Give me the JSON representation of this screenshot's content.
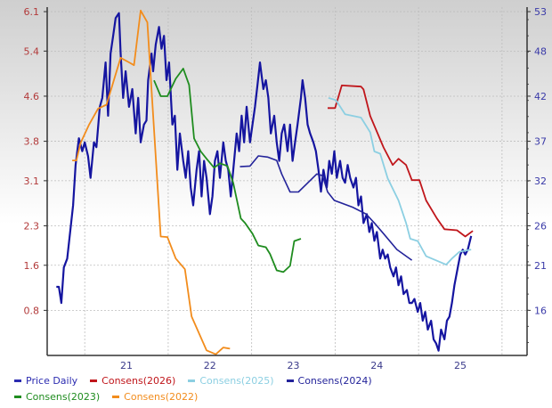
{
  "chart_data": {
    "type": "line",
    "x_range": [
      2020.55,
      2026.3
    ],
    "x_ticks": [
      {
        "label": "21",
        "value": 2021.5
      },
      {
        "label": "22",
        "value": 2022.5
      },
      {
        "label": "23",
        "value": 2023.5
      },
      {
        "label": "24",
        "value": 2024.5
      },
      {
        "label": "25",
        "value": 2025.5
      }
    ],
    "x_gridlines": [
      2021,
      2022,
      2023,
      2024,
      2025,
      2026
    ],
    "left_axis": {
      "range": [
        0,
        6.18
      ],
      "ticks": [
        "6.1",
        "5.4",
        "4.6",
        "3.8",
        "3.1",
        "2.3",
        "1.6",
        "0.8"
      ],
      "color": "#b23a3a"
    },
    "right_axis": {
      "range": [
        10.4,
        53.55
      ],
      "ticks": [
        "53",
        "48",
        "42",
        "37",
        "32",
        "26",
        "21",
        "16"
      ],
      "color": "#3a3aa8"
    },
    "grid": true,
    "background": "gradient grey to white",
    "legend_position": "bottom",
    "series": [
      {
        "name": "Price Daily",
        "axis": "right",
        "color": "#1515a0",
        "width": 2.2,
        "x": [
          2020.66,
          2020.69,
          2020.72,
          2020.75,
          2020.79,
          2020.82,
          2020.86,
          2020.89,
          2020.93,
          2020.97,
          2021.0,
          2021.04,
          2021.07,
          2021.11,
          2021.14,
          2021.18,
          2021.21,
          2021.25,
          2021.28,
          2021.31,
          2021.34,
          2021.37,
          2021.41,
          2021.43,
          2021.46,
          2021.49,
          2021.53,
          2021.57,
          2021.61,
          2021.64,
          2021.67,
          2021.71,
          2021.74,
          2021.76,
          2021.8,
          2021.82,
          2021.85,
          2021.89,
          2021.92,
          2021.95,
          2021.98,
          2022.01,
          2022.05,
          2022.08,
          2022.11,
          2022.14,
          2022.18,
          2022.21,
          2022.24,
          2022.27,
          2022.3,
          2022.34,
          2022.37,
          2022.4,
          2022.43,
          2022.46,
          2022.5,
          2022.53,
          2022.56,
          2022.59,
          2022.62,
          2022.66,
          2022.69,
          2022.72,
          2022.75,
          2022.78,
          2022.82,
          2022.85,
          2022.88,
          2022.91,
          2022.94,
          2022.98,
          2023.01,
          2023.04,
          2023.07,
          2023.1,
          2023.14,
          2023.17,
          2023.2,
          2023.23,
          2023.27,
          2023.3,
          2023.33,
          2023.36,
          2023.39,
          2023.43,
          2023.46,
          2023.49,
          2023.52,
          2023.55,
          2023.59,
          2023.61,
          2023.64,
          2023.67,
          2023.7,
          2023.74,
          2023.77,
          2023.8,
          2023.83,
          2023.86,
          2023.9,
          2023.93,
          2023.96,
          2023.99,
          2024.02,
          2024.06,
          2024.09,
          2024.12,
          2024.15,
          2024.18,
          2024.22,
          2024.25,
          2024.28,
          2024.31,
          2024.34,
          2024.38,
          2024.41,
          2024.44,
          2024.47,
          2024.5,
          2024.54,
          2024.57,
          2024.6,
          2024.63,
          2024.66,
          2024.7,
          2024.73,
          2024.76,
          2024.79,
          2024.82,
          2024.86,
          2024.89,
          2024.92,
          2024.95,
          2024.99,
          2025.02,
          2025.05,
          2025.08,
          2025.11,
          2025.15,
          2025.18,
          2025.21,
          2025.24,
          2025.27,
          2025.31,
          2025.34,
          2025.37,
          2025.4,
          2025.43,
          2025.47,
          2025.5,
          2025.53,
          2025.56,
          2025.59,
          2025.63
        ],
        "y": [
          18.9,
          18.9,
          16.9,
          21.3,
          22.4,
          25.2,
          29.0,
          34.0,
          37.3,
          35.7,
          36.8,
          35.1,
          32.4,
          36.8,
          36.2,
          41.2,
          42.3,
          46.7,
          40.1,
          47.8,
          50.0,
          52.2,
          52.8,
          47.8,
          42.3,
          45.6,
          41.2,
          43.4,
          37.9,
          42.3,
          36.8,
          39.0,
          39.5,
          44.5,
          47.8,
          45.6,
          48.9,
          51.1,
          48.4,
          50.0,
          44.5,
          46.7,
          39.0,
          40.1,
          33.4,
          37.9,
          34.5,
          32.4,
          35.7,
          31.2,
          29.0,
          33.4,
          35.7,
          30.1,
          34.5,
          32.4,
          27.9,
          30.1,
          34.5,
          35.7,
          32.4,
          36.8,
          34.5,
          33.4,
          30.1,
          33.4,
          37.9,
          35.7,
          40.1,
          36.8,
          41.2,
          36.8,
          39.0,
          41.2,
          43.9,
          46.7,
          43.4,
          44.5,
          42.3,
          37.9,
          40.1,
          36.8,
          34.5,
          37.9,
          39.0,
          35.7,
          39.0,
          34.5,
          36.8,
          39.0,
          42.3,
          44.5,
          42.3,
          39.0,
          37.9,
          36.8,
          35.7,
          33.4,
          30.7,
          33.4,
          31.2,
          34.5,
          32.9,
          35.7,
          32.4,
          34.5,
          32.4,
          31.8,
          34.0,
          32.4,
          31.2,
          32.4,
          29.0,
          30.1,
          26.8,
          27.9,
          25.7,
          26.8,
          24.6,
          25.7,
          22.4,
          23.5,
          22.4,
          22.9,
          21.3,
          20.2,
          21.3,
          19.1,
          20.2,
          18.0,
          18.5,
          16.9,
          16.9,
          17.4,
          15.8,
          16.9,
          14.7,
          15.8,
          13.6,
          14.7,
          12.4,
          11.9,
          11.0,
          13.6,
          12.4,
          14.7,
          15.2,
          16.9,
          19.1,
          21.3,
          22.9,
          23.5,
          22.9,
          23.5,
          25.2
        ]
      },
      {
        "name": "Consens(2026)",
        "axis": "left",
        "color": "#c0161b",
        "width": 1.8,
        "x": [
          2023.91,
          2024.0,
          2024.08,
          2024.31,
          2024.34,
          2024.42,
          2024.58,
          2024.69,
          2024.76,
          2024.85,
          2024.92,
          2025.01,
          2025.09,
          2025.22,
          2025.31,
          2025.46,
          2025.56,
          2025.65
        ],
        "y": [
          4.39,
          4.39,
          4.79,
          4.77,
          4.72,
          4.25,
          3.69,
          3.38,
          3.49,
          3.38,
          3.11,
          3.11,
          2.75,
          2.43,
          2.24,
          2.22,
          2.11,
          2.21
        ]
      },
      {
        "name": "Consens(2025)",
        "axis": "left",
        "color": "#8ccfe2",
        "width": 1.8,
        "x": [
          2023.92,
          2024.01,
          2024.12,
          2024.31,
          2024.42,
          2024.47,
          2024.54,
          2024.63,
          2024.76,
          2024.85,
          2024.9,
          2024.99,
          2025.09,
          2025.33,
          2025.4,
          2025.49,
          2025.63
        ],
        "y": [
          4.57,
          4.53,
          4.28,
          4.22,
          3.96,
          3.62,
          3.58,
          3.14,
          2.75,
          2.35,
          2.07,
          2.03,
          1.76,
          1.61,
          1.72,
          1.84,
          1.88
        ]
      },
      {
        "name": "Consens(2024)",
        "axis": "left",
        "color": "#23239a",
        "width": 1.6,
        "x": [
          2022.86,
          2022.98,
          2023.08,
          2023.19,
          2023.3,
          2023.36,
          2023.46,
          2023.56,
          2023.67,
          2023.78,
          2023.85,
          2023.91,
          2023.99,
          2024.21,
          2024.37,
          2024.47,
          2024.58,
          2024.74,
          2024.92
        ],
        "y": [
          3.35,
          3.36,
          3.54,
          3.52,
          3.46,
          3.22,
          2.9,
          2.9,
          3.06,
          3.22,
          3.19,
          2.9,
          2.75,
          2.63,
          2.51,
          2.35,
          2.16,
          1.88,
          1.69
        ]
      },
      {
        "name": "Consens(2023)",
        "axis": "left",
        "color": "#1f8c1f",
        "width": 1.8,
        "x": [
          2021.83,
          2021.91,
          2021.99,
          2022.09,
          2022.18,
          2022.25,
          2022.31,
          2022.39,
          2022.46,
          2022.55,
          2022.62,
          2022.71,
          2022.78,
          2022.87,
          2022.92,
          2023.01,
          2023.08,
          2023.17,
          2023.22,
          2023.3,
          2023.38,
          2023.46,
          2023.51,
          2023.59
        ],
        "y": [
          4.88,
          4.6,
          4.6,
          4.91,
          5.09,
          4.8,
          3.85,
          3.62,
          3.49,
          3.33,
          3.41,
          3.36,
          3.06,
          2.43,
          2.35,
          2.16,
          1.95,
          1.92,
          1.8,
          1.51,
          1.48,
          1.59,
          2.03,
          2.07
        ]
      },
      {
        "name": "Consens(2022)",
        "axis": "left",
        "color": "#f28c1c",
        "width": 1.8,
        "x": [
          2020.85,
          2020.9,
          2020.95,
          2021.05,
          2021.16,
          2021.26,
          2021.43,
          2021.53,
          2021.59,
          2021.67,
          2021.75,
          2021.91,
          2021.99,
          2022.09,
          2022.2,
          2022.28,
          2022.46,
          2022.57,
          2022.66,
          2022.74
        ],
        "y": [
          3.46,
          3.46,
          3.77,
          4.09,
          4.38,
          4.45,
          5.28,
          5.2,
          5.15,
          6.12,
          5.91,
          2.11,
          2.1,
          1.72,
          1.53,
          0.69,
          0.09,
          0.02,
          0.14,
          0.12
        ]
      }
    ]
  },
  "legend": [
    {
      "label": "Price Daily",
      "color": "#2b2bb0"
    },
    {
      "label": "Consens(2026)",
      "color": "#c0161b"
    },
    {
      "label": "Consens(2025)",
      "color": "#8ccfe2"
    },
    {
      "label": "Consens(2024)",
      "color": "#23239a"
    },
    {
      "label": "Consens(2023)",
      "color": "#1f8c1f"
    },
    {
      "label": "Consens(2022)",
      "color": "#f28c1c"
    }
  ]
}
